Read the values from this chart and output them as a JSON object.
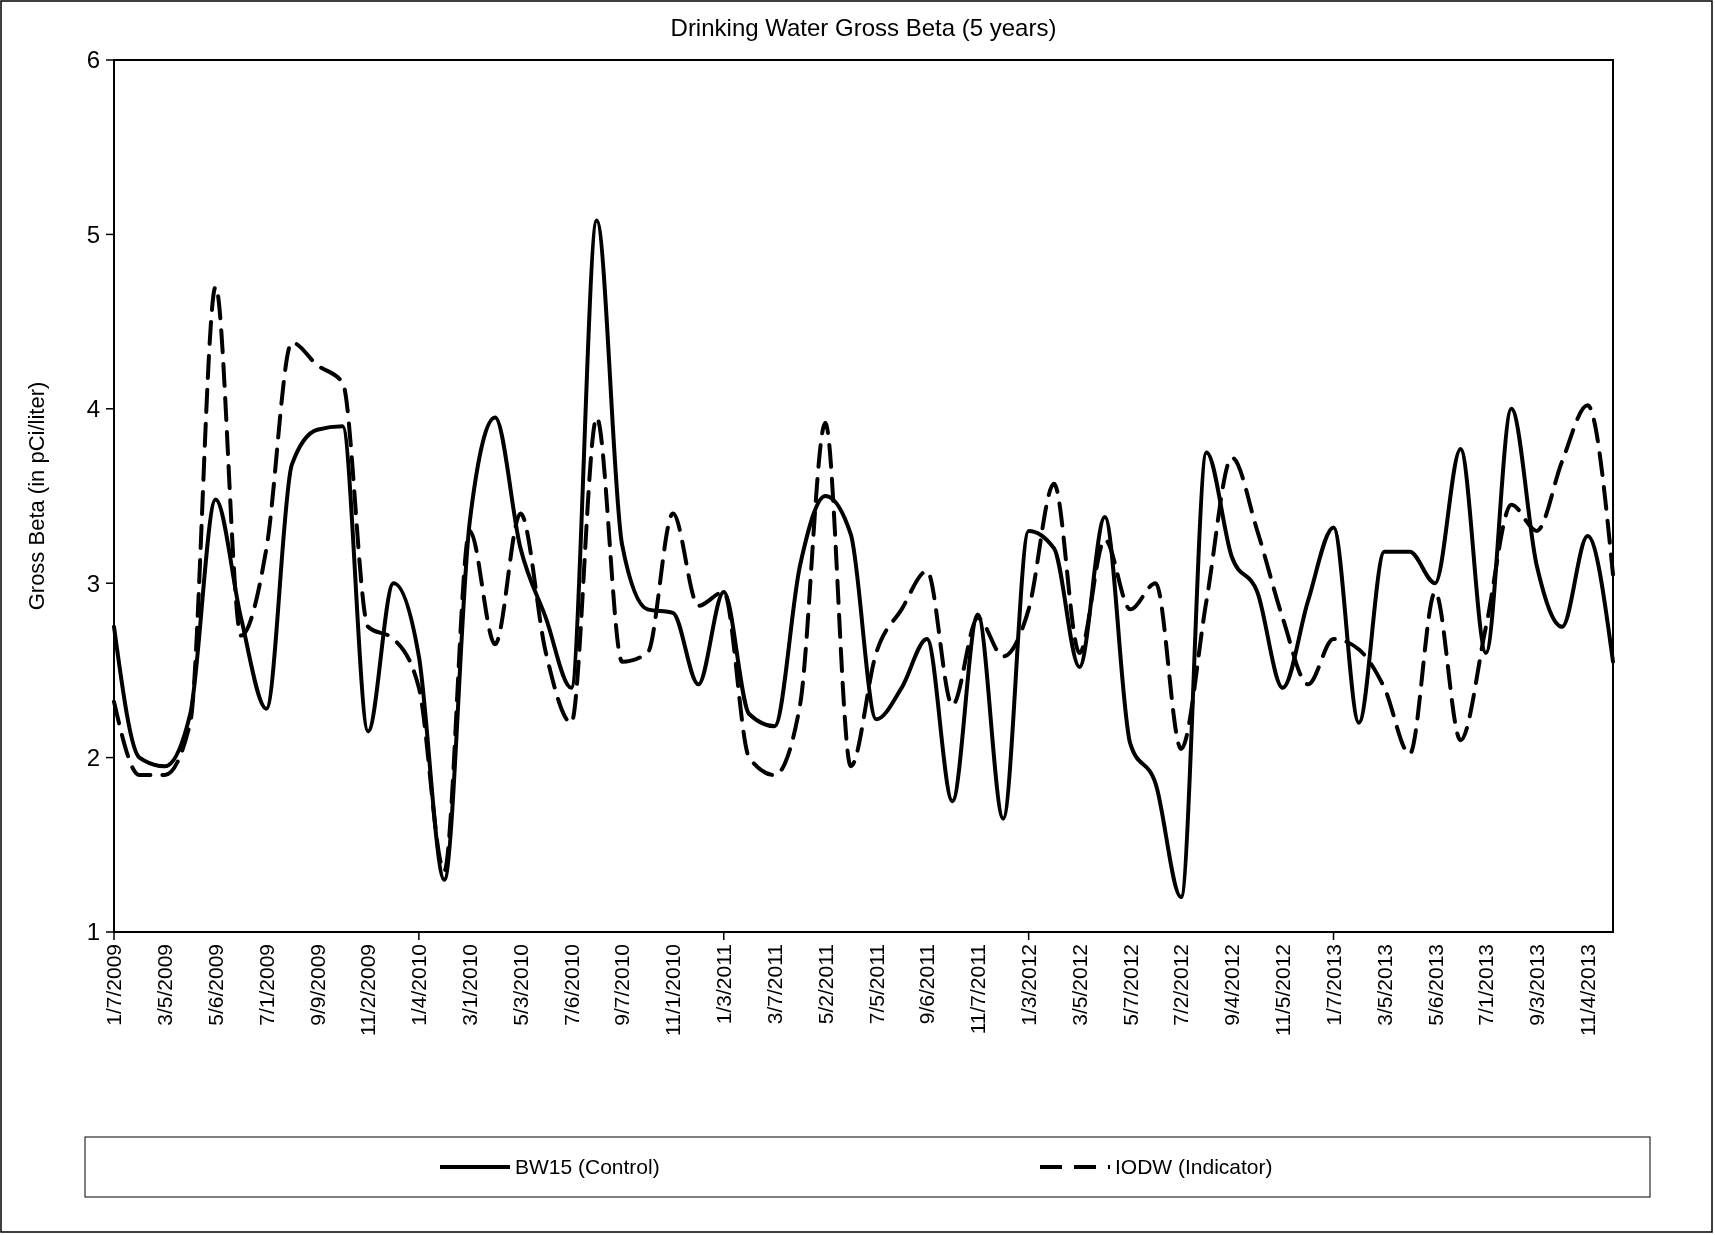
{
  "chart_data": {
    "type": "line",
    "title": "Drinking Water Gross Beta (5 years)",
    "ylabel": "Gross Beta (in pCi/liter)",
    "categories": [
      "1/7/2009",
      null,
      "3/5/2009",
      null,
      "5/6/2009",
      null,
      "7/1/2009",
      null,
      "9/9/2009",
      null,
      "11/2/2009",
      null,
      "1/4/2010",
      null,
      "3/1/2010",
      null,
      "5/3/2010",
      null,
      "7/6/2010",
      null,
      "9/7/2010",
      null,
      "11/1/2010",
      null,
      "1/3/2011",
      null,
      "3/7/2011",
      null,
      "5/2/2011",
      null,
      "7/5/2011",
      null,
      "9/6/2011",
      null,
      "11/7/2011",
      null,
      "1/3/2012",
      null,
      "3/5/2012",
      null,
      "5/7/2012",
      null,
      "7/2/2012",
      null,
      "9/4/2012",
      null,
      "11/5/2012",
      null,
      "1/7/2013",
      null,
      "3/5/2013",
      null,
      "5/6/2013",
      null,
      "7/1/2013",
      null,
      "9/3/2013",
      null,
      "11/4/2013",
      null
    ],
    "series": [
      {
        "name": "BW15 (Control)",
        "color": "#000000",
        "line_style": "solid",
        "values": [
          2.75,
          2.0,
          1.95,
          2.25,
          3.48,
          2.8,
          2.28,
          3.68,
          3.88,
          3.9,
          2.15,
          3.0,
          2.58,
          1.3,
          3.35,
          3.95,
          3.2,
          2.8,
          2.4,
          5.08,
          3.22,
          2.85,
          2.83,
          2.42,
          2.95,
          2.25,
          2.18,
          3.1,
          3.5,
          3.28,
          2.22,
          2.4,
          2.68,
          1.75,
          2.82,
          1.65,
          3.3,
          3.2,
          2.52,
          3.38,
          2.08,
          1.85,
          1.2,
          3.75,
          3.15,
          2.95,
          2.4,
          2.9,
          3.32,
          2.2,
          3.18,
          3.18,
          3.0,
          3.77,
          2.6,
          4.0,
          3.1,
          2.75,
          3.27,
          2.55
        ]
      },
      {
        "name": "IODW (Indicator)",
        "color": "#000000",
        "line_style": "dashed",
        "values": [
          2.32,
          1.9,
          1.9,
          2.2,
          4.7,
          2.7,
          3.2,
          4.38,
          4.25,
          4.15,
          2.75,
          2.68,
          2.4,
          1.35,
          3.3,
          2.65,
          3.4,
          2.6,
          2.2,
          3.95,
          2.55,
          2.6,
          3.4,
          2.87,
          2.95,
          2.0,
          1.9,
          2.3,
          3.92,
          1.95,
          2.6,
          2.85,
          3.07,
          2.3,
          2.8,
          2.58,
          2.85,
          3.57,
          2.6,
          3.25,
          2.85,
          3.0,
          2.05,
          2.9,
          3.72,
          3.3,
          2.8,
          2.42,
          2.68,
          2.62,
          2.4,
          2.02,
          2.95,
          2.1,
          2.75,
          3.45,
          3.3,
          3.7,
          4.02,
          3.05
        ]
      }
    ],
    "ylim": [
      1,
      6
    ],
    "yticks": [
      1,
      2,
      3,
      4,
      5,
      6
    ],
    "grid": false,
    "legend": "bottom",
    "marker": "none"
  }
}
